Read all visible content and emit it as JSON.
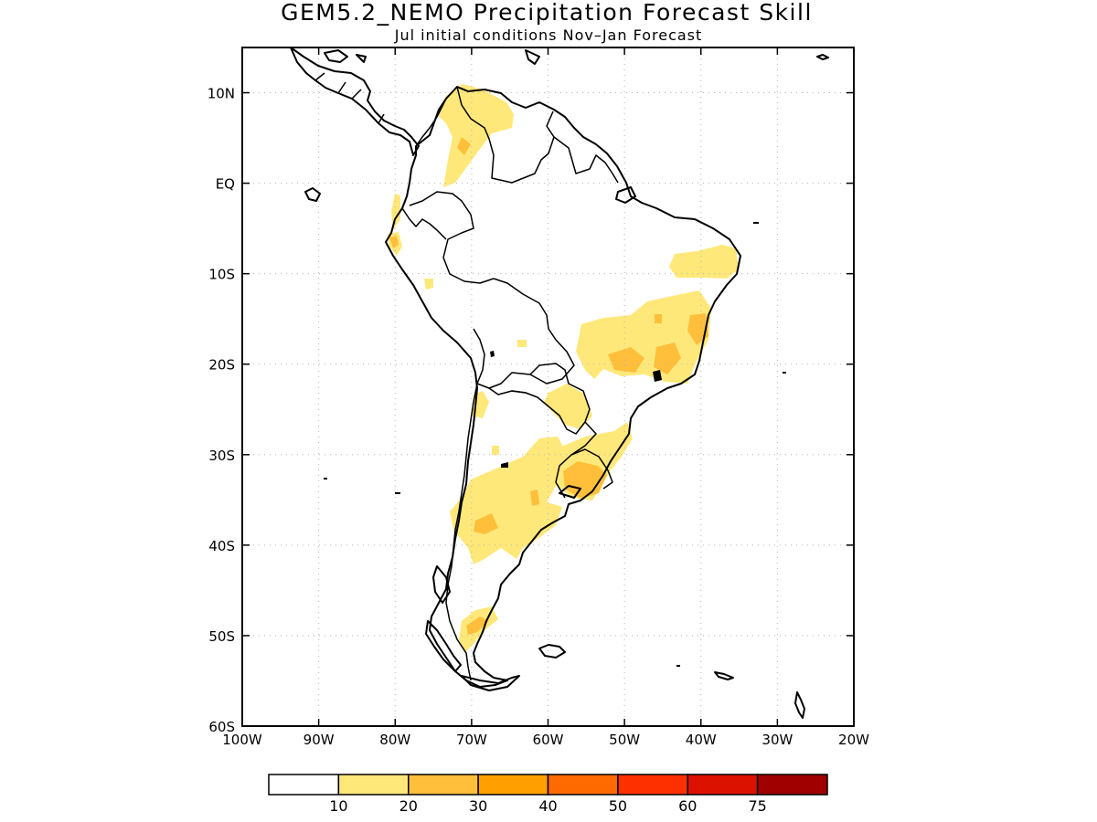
{
  "title": "GEM5.2_NEMO Precipitation Forecast Skill",
  "subtitle": "Jul initial conditions   Nov–Jan Forecast",
  "map": {
    "lon_range": [
      -100,
      -20
    ],
    "lat_range": [
      -60,
      15
    ],
    "lon_ticks": [
      {
        "value": -100,
        "label": "100W"
      },
      {
        "value": -90,
        "label": "90W"
      },
      {
        "value": -80,
        "label": "80W"
      },
      {
        "value": -70,
        "label": "70W"
      },
      {
        "value": -60,
        "label": "60W"
      },
      {
        "value": -50,
        "label": "50W"
      },
      {
        "value": -40,
        "label": "40W"
      },
      {
        "value": -30,
        "label": "30W"
      },
      {
        "value": -20,
        "label": "20W"
      }
    ],
    "lat_ticks": [
      {
        "value": 10,
        "label": "10N"
      },
      {
        "value": 0,
        "label": "EQ"
      },
      {
        "value": -10,
        "label": "10S"
      },
      {
        "value": -20,
        "label": "20S"
      },
      {
        "value": -30,
        "label": "30S"
      },
      {
        "value": -40,
        "label": "40S"
      },
      {
        "value": -50,
        "label": "50S"
      },
      {
        "value": -60,
        "label": "60S"
      }
    ],
    "grid": true
  },
  "colorbar": {
    "colors": [
      "#ffffff",
      "#ffe87a",
      "#ffbf3a",
      "#ffa000",
      "#ff6a00",
      "#ff3000",
      "#dd1100",
      "#a00000"
    ],
    "labels": [
      "10",
      "20",
      "30",
      "40",
      "50",
      "60",
      "75"
    ]
  }
}
